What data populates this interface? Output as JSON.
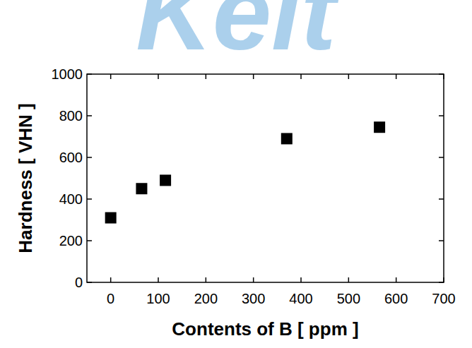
{
  "chart_data": {
    "type": "scatter",
    "x_label": "Contents of B [ ppm ]",
    "y_label": "Hardness [ VHN ]",
    "annotations": [
      "Keit"
    ],
    "x": [
      0,
      65,
      115,
      370,
      565
    ],
    "values": [
      310,
      450,
      490,
      690,
      745
    ],
    "color": "#000000",
    "marker": "square",
    "xlim": [
      -50,
      700
    ],
    "xticks": [
      0,
      100,
      200,
      300,
      400,
      500,
      600,
      700
    ],
    "ylim": [
      0,
      1000
    ],
    "yticks": [
      0,
      200,
      400,
      600,
      800,
      1000
    ],
    "grid": false
  }
}
